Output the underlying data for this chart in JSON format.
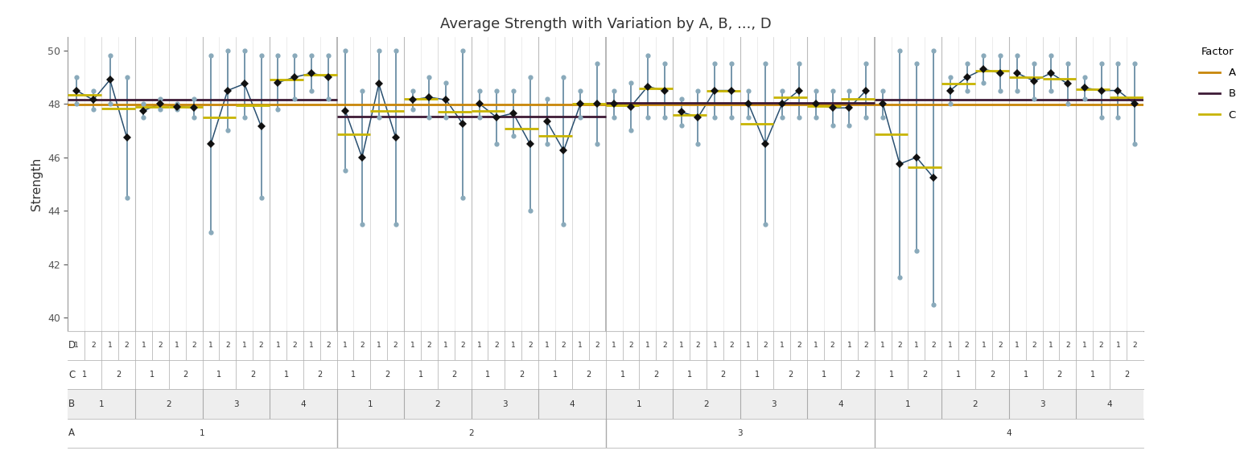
{
  "title": "Average Strength with Variation by A, B, ..., D",
  "ylabel": "Strength",
  "ylim": [
    39.5,
    50.5
  ],
  "yticks": [
    40,
    42,
    44,
    46,
    48,
    50
  ],
  "legend_title": "Factor",
  "mean_A_color": "#C8860A",
  "mean_B_color": "#3D1A35",
  "mean_C_color": "#C8B400",
  "line_color": "#2A5070",
  "point_color": "#6A8EA5",
  "mean_point_color": "#111111",
  "raw_point_color": "#8AAABB",
  "groups": [
    {
      "A": 1,
      "B": 1,
      "C": 1,
      "D": 1,
      "raw": [
        49.0,
        48.0
      ],
      "mean": 48.5
    },
    {
      "A": 1,
      "B": 1,
      "C": 1,
      "D": 2,
      "raw": [
        48.5,
        47.8
      ],
      "mean": 48.15
    },
    {
      "A": 1,
      "B": 1,
      "C": 2,
      "D": 1,
      "raw": [
        49.8,
        48.0
      ],
      "mean": 48.9
    },
    {
      "A": 1,
      "B": 1,
      "C": 2,
      "D": 2,
      "raw": [
        49.0,
        44.5
      ],
      "mean": 46.75
    },
    {
      "A": 1,
      "B": 2,
      "C": 1,
      "D": 1,
      "raw": [
        48.0,
        47.5
      ],
      "mean": 47.75
    },
    {
      "A": 1,
      "B": 2,
      "C": 1,
      "D": 2,
      "raw": [
        48.2,
        47.8
      ],
      "mean": 48.0
    },
    {
      "A": 1,
      "B": 2,
      "C": 2,
      "D": 1,
      "raw": [
        48.0,
        47.8
      ],
      "mean": 47.9
    },
    {
      "A": 1,
      "B": 2,
      "C": 2,
      "D": 2,
      "raw": [
        48.2,
        47.5
      ],
      "mean": 47.85
    },
    {
      "A": 1,
      "B": 3,
      "C": 1,
      "D": 1,
      "raw": [
        49.8,
        43.2
      ],
      "mean": 46.5
    },
    {
      "A": 1,
      "B": 3,
      "C": 1,
      "D": 2,
      "raw": [
        50.0,
        47.0
      ],
      "mean": 48.5
    },
    {
      "A": 1,
      "B": 3,
      "C": 2,
      "D": 1,
      "raw": [
        50.0,
        47.5
      ],
      "mean": 48.75
    },
    {
      "A": 1,
      "B": 3,
      "C": 2,
      "D": 2,
      "raw": [
        49.8,
        44.5
      ],
      "mean": 47.15
    },
    {
      "A": 1,
      "B": 4,
      "C": 1,
      "D": 1,
      "raw": [
        49.8,
        47.8
      ],
      "mean": 48.8
    },
    {
      "A": 1,
      "B": 4,
      "C": 1,
      "D": 2,
      "raw": [
        49.8,
        48.2
      ],
      "mean": 49.0
    },
    {
      "A": 1,
      "B": 4,
      "C": 2,
      "D": 1,
      "raw": [
        49.8,
        48.5
      ],
      "mean": 49.15
    },
    {
      "A": 1,
      "B": 4,
      "C": 2,
      "D": 2,
      "raw": [
        49.8,
        48.2
      ],
      "mean": 49.0
    },
    {
      "A": 2,
      "B": 1,
      "C": 1,
      "D": 1,
      "raw": [
        50.0,
        45.5
      ],
      "mean": 47.75
    },
    {
      "A": 2,
      "B": 1,
      "C": 1,
      "D": 2,
      "raw": [
        48.5,
        43.5
      ],
      "mean": 46.0
    },
    {
      "A": 2,
      "B": 1,
      "C": 2,
      "D": 1,
      "raw": [
        50.0,
        47.5
      ],
      "mean": 48.75
    },
    {
      "A": 2,
      "B": 1,
      "C": 2,
      "D": 2,
      "raw": [
        50.0,
        43.5
      ],
      "mean": 46.75
    },
    {
      "A": 2,
      "B": 2,
      "C": 1,
      "D": 1,
      "raw": [
        48.5,
        47.8
      ],
      "mean": 48.15
    },
    {
      "A": 2,
      "B": 2,
      "C": 1,
      "D": 2,
      "raw": [
        49.0,
        47.5
      ],
      "mean": 48.25
    },
    {
      "A": 2,
      "B": 2,
      "C": 2,
      "D": 1,
      "raw": [
        48.8,
        47.5
      ],
      "mean": 48.15
    },
    {
      "A": 2,
      "B": 2,
      "C": 2,
      "D": 2,
      "raw": [
        50.0,
        44.5
      ],
      "mean": 47.25
    },
    {
      "A": 2,
      "B": 3,
      "C": 1,
      "D": 1,
      "raw": [
        48.5,
        47.5
      ],
      "mean": 48.0
    },
    {
      "A": 2,
      "B": 3,
      "C": 1,
      "D": 2,
      "raw": [
        48.5,
        46.5
      ],
      "mean": 47.5
    },
    {
      "A": 2,
      "B": 3,
      "C": 2,
      "D": 1,
      "raw": [
        48.5,
        46.8
      ],
      "mean": 47.65
    },
    {
      "A": 2,
      "B": 3,
      "C": 2,
      "D": 2,
      "raw": [
        49.0,
        44.0
      ],
      "mean": 46.5
    },
    {
      "A": 2,
      "B": 4,
      "C": 1,
      "D": 1,
      "raw": [
        48.2,
        46.5
      ],
      "mean": 47.35
    },
    {
      "A": 2,
      "B": 4,
      "C": 1,
      "D": 2,
      "raw": [
        49.0,
        43.5
      ],
      "mean": 46.25
    },
    {
      "A": 2,
      "B": 4,
      "C": 2,
      "D": 1,
      "raw": [
        48.5,
        47.5
      ],
      "mean": 48.0
    },
    {
      "A": 2,
      "B": 4,
      "C": 2,
      "D": 2,
      "raw": [
        49.5,
        46.5
      ],
      "mean": 48.0
    },
    {
      "A": 3,
      "B": 1,
      "C": 1,
      "D": 1,
      "raw": [
        48.5,
        47.5
      ],
      "mean": 48.0
    },
    {
      "A": 3,
      "B": 1,
      "C": 1,
      "D": 2,
      "raw": [
        48.8,
        47.0
      ],
      "mean": 47.9
    },
    {
      "A": 3,
      "B": 1,
      "C": 2,
      "D": 1,
      "raw": [
        49.8,
        47.5
      ],
      "mean": 48.65
    },
    {
      "A": 3,
      "B": 1,
      "C": 2,
      "D": 2,
      "raw": [
        49.5,
        47.5
      ],
      "mean": 48.5
    },
    {
      "A": 3,
      "B": 2,
      "C": 1,
      "D": 1,
      "raw": [
        48.2,
        47.2
      ],
      "mean": 47.7
    },
    {
      "A": 3,
      "B": 2,
      "C": 1,
      "D": 2,
      "raw": [
        48.5,
        46.5
      ],
      "mean": 47.5
    },
    {
      "A": 3,
      "B": 2,
      "C": 2,
      "D": 1,
      "raw": [
        49.5,
        47.5
      ],
      "mean": 48.5
    },
    {
      "A": 3,
      "B": 2,
      "C": 2,
      "D": 2,
      "raw": [
        49.5,
        47.5
      ],
      "mean": 48.5
    },
    {
      "A": 3,
      "B": 3,
      "C": 1,
      "D": 1,
      "raw": [
        48.5,
        47.5
      ],
      "mean": 48.0
    },
    {
      "A": 3,
      "B": 3,
      "C": 1,
      "D": 2,
      "raw": [
        49.5,
        43.5
      ],
      "mean": 46.5
    },
    {
      "A": 3,
      "B": 3,
      "C": 2,
      "D": 1,
      "raw": [
        48.5,
        47.5
      ],
      "mean": 48.0
    },
    {
      "A": 3,
      "B": 3,
      "C": 2,
      "D": 2,
      "raw": [
        49.5,
        47.5
      ],
      "mean": 48.5
    },
    {
      "A": 3,
      "B": 4,
      "C": 1,
      "D": 1,
      "raw": [
        48.5,
        47.5
      ],
      "mean": 48.0
    },
    {
      "A": 3,
      "B": 4,
      "C": 1,
      "D": 2,
      "raw": [
        48.5,
        47.2
      ],
      "mean": 47.85
    },
    {
      "A": 3,
      "B": 4,
      "C": 2,
      "D": 1,
      "raw": [
        48.5,
        47.2
      ],
      "mean": 47.85
    },
    {
      "A": 3,
      "B": 4,
      "C": 2,
      "D": 2,
      "raw": [
        49.5,
        47.5
      ],
      "mean": 48.5
    },
    {
      "A": 4,
      "B": 1,
      "C": 1,
      "D": 1,
      "raw": [
        48.5,
        47.5
      ],
      "mean": 48.0
    },
    {
      "A": 4,
      "B": 1,
      "C": 1,
      "D": 2,
      "raw": [
        50.0,
        41.5
      ],
      "mean": 45.75
    },
    {
      "A": 4,
      "B": 1,
      "C": 2,
      "D": 1,
      "raw": [
        49.5,
        42.5
      ],
      "mean": 46.0
    },
    {
      "A": 4,
      "B": 1,
      "C": 2,
      "D": 2,
      "raw": [
        50.0,
        40.5
      ],
      "mean": 45.25
    },
    {
      "A": 4,
      "B": 2,
      "C": 1,
      "D": 1,
      "raw": [
        49.0,
        48.0
      ],
      "mean": 48.5
    },
    {
      "A": 4,
      "B": 2,
      "C": 1,
      "D": 2,
      "raw": [
        49.5,
        48.5
      ],
      "mean": 49.0
    },
    {
      "A": 4,
      "B": 2,
      "C": 2,
      "D": 1,
      "raw": [
        49.8,
        48.8
      ],
      "mean": 49.3
    },
    {
      "A": 4,
      "B": 2,
      "C": 2,
      "D": 2,
      "raw": [
        49.8,
        48.5
      ],
      "mean": 49.15
    },
    {
      "A": 4,
      "B": 3,
      "C": 1,
      "D": 1,
      "raw": [
        49.8,
        48.5
      ],
      "mean": 49.15
    },
    {
      "A": 4,
      "B": 3,
      "C": 1,
      "D": 2,
      "raw": [
        49.5,
        48.2
      ],
      "mean": 48.85
    },
    {
      "A": 4,
      "B": 3,
      "C": 2,
      "D": 1,
      "raw": [
        49.8,
        48.5
      ],
      "mean": 49.15
    },
    {
      "A": 4,
      "B": 3,
      "C": 2,
      "D": 2,
      "raw": [
        49.5,
        48.0
      ],
      "mean": 48.75
    },
    {
      "A": 4,
      "B": 4,
      "C": 1,
      "D": 1,
      "raw": [
        49.0,
        48.2
      ],
      "mean": 48.6
    },
    {
      "A": 4,
      "B": 4,
      "C": 1,
      "D": 2,
      "raw": [
        49.5,
        47.5
      ],
      "mean": 48.5
    },
    {
      "A": 4,
      "B": 4,
      "C": 2,
      "D": 1,
      "raw": [
        49.5,
        47.5
      ],
      "mean": 48.5
    },
    {
      "A": 4,
      "B": 4,
      "C": 2,
      "D": 2,
      "raw": [
        49.5,
        46.5
      ],
      "mean": 48.0
    }
  ]
}
